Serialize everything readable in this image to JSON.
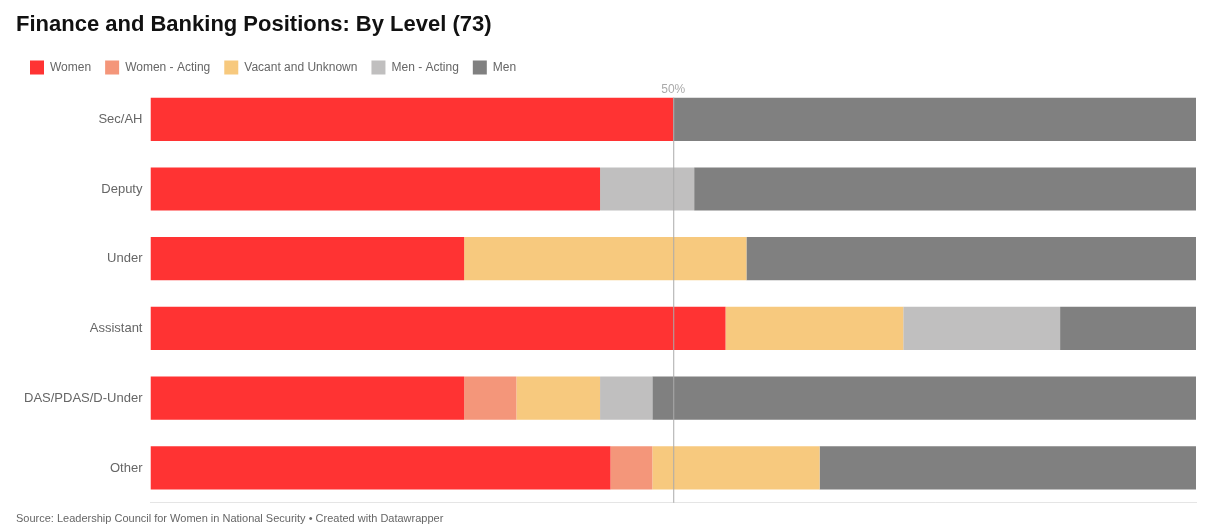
{
  "chart_data": {
    "type": "bar",
    "orientation": "horizontal",
    "stacked": true,
    "title": "Finance and Banking Positions: By Level (73)",
    "source": "Source: Leadership Council for Women in National Security • Created with Datawrapper",
    "categories": [
      "Sec/AH",
      "Deputy",
      "Under",
      "Assistant",
      "DAS/PDAS/D-Under",
      "Other"
    ],
    "series": [
      {
        "name": "Women",
        "color": "#ff3333",
        "values": [
          50.0,
          43.0,
          30.0,
          55.0,
          30.0,
          44.0
        ]
      },
      {
        "name": "Women - Acting",
        "color": "#f4967a",
        "values": [
          0.0,
          0.0,
          0.0,
          0.0,
          5.0,
          4.0
        ]
      },
      {
        "name": "Vacant and Unknown",
        "color": "#f7c97e",
        "values": [
          0.0,
          0.0,
          27.0,
          17.0,
          8.0,
          16.0
        ]
      },
      {
        "name": "Men - Acting",
        "color": "#c0bfbf",
        "values": [
          0.0,
          9.0,
          0.0,
          15.0,
          5.0,
          0.0
        ]
      },
      {
        "name": "Men",
        "color": "#808080",
        "values": [
          50.0,
          48.0,
          43.0,
          13.0,
          52.0,
          36.0
        ]
      }
    ],
    "xlim": [
      0,
      100
    ],
    "annotations": [
      {
        "x": 50,
        "text": "50%",
        "color": "#aaaaaa"
      }
    ],
    "grid": false,
    "legend": "top",
    "tick_labels": "y"
  }
}
